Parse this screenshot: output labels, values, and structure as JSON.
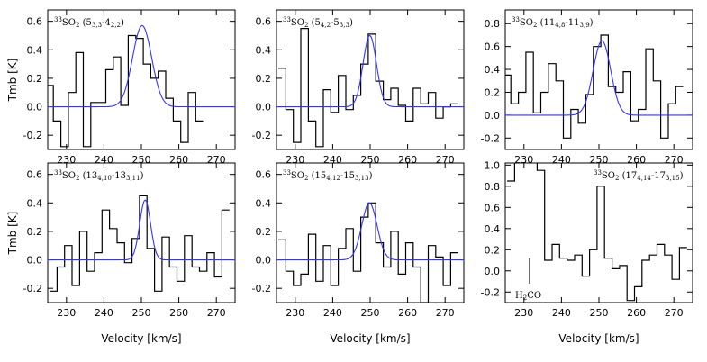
{
  "chart_data": [
    {
      "type": "line",
      "title": "33SO2 (5 3,3 - 4 2,2)",
      "title_parts": {
        "prefix": "33",
        "mol": "SO",
        "sub": "2",
        "upper": "5",
        "upper_sub": "3,3",
        "lower": "4",
        "lower_sub": "2,2"
      },
      "xlabel": "",
      "ylabel": "Tmb [K]",
      "xlim": [
        225,
        275
      ],
      "ylim": [
        -0.3,
        0.68
      ],
      "xticks": [
        230,
        240,
        250,
        260,
        270
      ],
      "yticks": [
        -0.2,
        0.0,
        0.2,
        0.4,
        0.6
      ],
      "yticklabels": [
        "-0.2",
        "0.0",
        "0.2",
        "0.4",
        "0.6"
      ],
      "series": [
        {
          "name": "observed",
          "style": "histogram",
          "color": "#000000",
          "x": [
            225.5,
            227.5,
            229.5,
            231.5,
            233.5,
            235.5,
            237.5,
            239.5,
            241.5,
            243.5,
            245.5,
            247.5,
            249.5,
            251.5,
            253.5,
            255.5,
            257.5,
            259.5,
            261.5,
            263.5,
            265.5
          ],
          "y": [
            0.15,
            -0.1,
            -0.28,
            0.1,
            0.38,
            -0.28,
            0.03,
            0.03,
            0.26,
            0.35,
            0.01,
            0.5,
            0.48,
            0.3,
            0.2,
            0.25,
            0.06,
            -0.1,
            -0.25,
            0.1,
            -0.1
          ]
        },
        {
          "name": "gaussian fit",
          "style": "gaussian",
          "color": "#3333ff",
          "amplitude": 0.57,
          "center": 250.2,
          "fwhm": 6.0
        }
      ]
    },
    {
      "type": "line",
      "title": "33SO2 (5 4,2 - 5 3,3)",
      "title_parts": {
        "prefix": "33",
        "mol": "SO",
        "sub": "2",
        "upper": "5",
        "upper_sub": "4,2",
        "lower": "5",
        "lower_sub": "3,3"
      },
      "xlabel": "",
      "ylabel": "",
      "xlim": [
        225,
        275
      ],
      "ylim": [
        -0.3,
        0.68
      ],
      "xticks": [
        230,
        240,
        250,
        260,
        270
      ],
      "yticks": [
        -0.2,
        0.0,
        0.2,
        0.4,
        0.6
      ],
      "yticklabels": [
        "-0.2",
        "0.0",
        "0.2",
        "0.4",
        "0.6"
      ],
      "series": [
        {
          "name": "observed",
          "style": "histogram",
          "color": "#000000",
          "x": [
            226.5,
            228.5,
            230.5,
            232.5,
            234.5,
            236.5,
            238.5,
            240.5,
            242.5,
            244.5,
            246.5,
            248.5,
            250.5,
            252.5,
            254.5,
            256.5,
            258.5,
            260.5,
            262.5,
            264.5,
            266.5,
            268.5,
            270.5,
            272.5
          ],
          "y": [
            0.27,
            -0.02,
            -0.25,
            0.55,
            -0.1,
            -0.28,
            0.12,
            -0.04,
            0.22,
            -0.02,
            0.08,
            0.3,
            0.51,
            0.18,
            0.05,
            0.13,
            0.01,
            -0.1,
            0.13,
            0.02,
            0.1,
            -0.08,
            0.0,
            0.02
          ]
        },
        {
          "name": "gaussian fit",
          "style": "gaussian",
          "color": "#3333ff",
          "amplitude": 0.5,
          "center": 249.9,
          "fwhm": 4.2
        }
      ]
    },
    {
      "type": "line",
      "title": "33SO2 (11 4,8 - 11 3,9)",
      "title_parts": {
        "prefix": "33",
        "mol": "SO",
        "sub": "2",
        "upper": "11",
        "upper_sub": "4,8",
        "lower": "11",
        "lower_sub": "3,9"
      },
      "xlabel": "",
      "ylabel": "",
      "xlim": [
        225,
        275
      ],
      "ylim": [
        -0.3,
        0.92
      ],
      "xticks": [
        230,
        240,
        250,
        260,
        270
      ],
      "yticks": [
        -0.2,
        0.0,
        0.2,
        0.4,
        0.6,
        0.8
      ],
      "yticklabels": [
        "-0.2",
        "0.0",
        "0.2",
        "0.4",
        "0.6",
        "0.8"
      ],
      "series": [
        {
          "name": "observed",
          "style": "histogram",
          "color": "#000000",
          "x": [
            225.5,
            227.5,
            229.5,
            231.5,
            233.5,
            235.5,
            237.5,
            239.5,
            241.5,
            243.5,
            245.5,
            247.5,
            249.5,
            251.5,
            253.5,
            255.5,
            257.5,
            259.5,
            261.5,
            263.5,
            265.5,
            267.5,
            269.5,
            271.5
          ],
          "y": [
            0.35,
            0.1,
            0.2,
            0.55,
            0.02,
            0.2,
            0.45,
            0.3,
            -0.2,
            0.05,
            -0.07,
            0.18,
            0.6,
            0.7,
            0.25,
            0.2,
            0.38,
            -0.05,
            0.05,
            0.58,
            0.3,
            -0.2,
            0.1,
            0.25
          ]
        },
        {
          "name": "gaussian fit",
          "style": "gaussian",
          "color": "#3333ff",
          "amplitude": 0.65,
          "center": 250.8,
          "fwhm": 5.5
        }
      ]
    },
    {
      "type": "line",
      "title": "33SO2 (13 4,10 - 13 3,11)",
      "title_parts": {
        "prefix": "33",
        "mol": "SO",
        "sub": "2",
        "upper": "13",
        "upper_sub": "4,10",
        "lower": "13",
        "lower_sub": "3,11"
      },
      "xlabel": "Velocity [km/s]",
      "ylabel": "Tmb [K]",
      "xlim": [
        225,
        275
      ],
      "ylim": [
        -0.3,
        0.68
      ],
      "xticks": [
        230,
        240,
        250,
        260,
        270
      ],
      "yticks": [
        -0.2,
        0.0,
        0.2,
        0.4,
        0.6
      ],
      "yticklabels": [
        "-0.2",
        "0.0",
        "0.2",
        "0.4",
        "0.6"
      ],
      "series": [
        {
          "name": "observed",
          "style": "histogram",
          "color": "#000000",
          "x": [
            226.5,
            228.5,
            230.5,
            232.5,
            234.5,
            236.5,
            238.5,
            240.5,
            242.5,
            244.5,
            246.5,
            248.5,
            250.5,
            252.5,
            254.5,
            256.5,
            258.5,
            260.5,
            262.5,
            264.5,
            266.5,
            268.5,
            270.5,
            272.5
          ],
          "y": [
            -0.22,
            -0.05,
            0.1,
            -0.18,
            0.2,
            -0.08,
            0.05,
            0.35,
            0.22,
            0.12,
            -0.02,
            0.15,
            0.45,
            0.08,
            -0.22,
            0.16,
            -0.05,
            -0.15,
            0.17,
            -0.05,
            -0.08,
            0.05,
            -0.12,
            0.35
          ]
        },
        {
          "name": "gaussian fit",
          "style": "gaussian",
          "color": "#3333ff",
          "amplitude": 0.42,
          "center": 251.0,
          "fwhm": 3.4
        }
      ]
    },
    {
      "type": "line",
      "title": "33SO2 (15 4,12 - 15 3,13)",
      "title_parts": {
        "prefix": "33",
        "mol": "SO",
        "sub": "2",
        "upper": "15",
        "upper_sub": "4,12",
        "lower": "15",
        "lower_sub": "3,13"
      },
      "xlabel": "Velocity [km/s]",
      "ylabel": "",
      "xlim": [
        225,
        275
      ],
      "ylim": [
        -0.3,
        0.68
      ],
      "xticks": [
        230,
        240,
        250,
        260,
        270
      ],
      "yticks": [
        -0.2,
        0.0,
        0.2,
        0.4,
        0.6
      ],
      "yticklabels": [
        "-0.2",
        "0.0",
        "0.2",
        "0.4",
        "0.6"
      ],
      "series": [
        {
          "name": "observed",
          "style": "histogram",
          "color": "#000000",
          "x": [
            226.5,
            228.5,
            230.5,
            232.5,
            234.5,
            236.5,
            238.5,
            240.5,
            242.5,
            244.5,
            246.5,
            248.5,
            250.5,
            252.5,
            254.5,
            256.5,
            258.5,
            260.5,
            262.5,
            264.5,
            266.5,
            268.5,
            270.5,
            272.5
          ],
          "y": [
            0.14,
            -0.08,
            -0.18,
            -0.1,
            0.18,
            -0.15,
            0.1,
            -0.18,
            0.08,
            0.22,
            -0.08,
            0.3,
            0.4,
            0.12,
            -0.05,
            0.2,
            -0.1,
            0.12,
            -0.05,
            -0.3,
            0.1,
            0.02,
            -0.18,
            0.05
          ]
        },
        {
          "name": "gaussian fit",
          "style": "gaussian",
          "color": "#3333ff",
          "amplitude": 0.4,
          "center": 249.8,
          "fwhm": 4.8
        }
      ]
    },
    {
      "type": "line",
      "title": "33SO2 (17 4,14 - 17 3,15)",
      "title_parts": {
        "prefix": "33",
        "mol": "SO",
        "sub": "2",
        "upper": "17",
        "upper_sub": "4,14",
        "lower": "17",
        "lower_sub": "3,15"
      },
      "xlabel": "Velocity [km/s]",
      "ylabel": "",
      "xlim": [
        225,
        275
      ],
      "ylim": [
        -0.3,
        1.02
      ],
      "xticks": [
        230,
        240,
        250,
        260,
        270
      ],
      "yticks": [
        -0.2,
        0.0,
        0.2,
        0.4,
        0.6,
        0.8,
        1.0
      ],
      "yticklabels": [
        "-0.2",
        "0.0",
        "0.2",
        "0.4",
        "0.6",
        "0.8",
        "1.0"
      ],
      "annotation": {
        "text": "H2CO",
        "formula": {
          "a": "H",
          "sub": "2",
          "b": "CO"
        },
        "x": 231.5,
        "y_start": -0.12,
        "y_end": 0.12
      },
      "series": [
        {
          "name": "observed",
          "style": "histogram",
          "color": "#000000",
          "x": [
            226.5,
            228.5,
            230.5,
            232.5,
            234.5,
            236.5,
            238.5,
            240.5,
            242.5,
            244.5,
            246.5,
            248.5,
            250.5,
            252.5,
            254.5,
            256.5,
            258.5,
            260.5,
            262.5,
            264.5,
            266.5,
            268.5,
            270.5,
            272.5
          ],
          "y": [
            0.85,
            1.05,
            1.05,
            1.05,
            0.95,
            0.1,
            0.25,
            0.12,
            0.1,
            0.15,
            -0.05,
            0.2,
            0.8,
            0.12,
            0.02,
            0.05,
            -0.28,
            -0.15,
            0.1,
            0.15,
            0.25,
            0.15,
            -0.08,
            0.22
          ]
        }
      ]
    }
  ]
}
